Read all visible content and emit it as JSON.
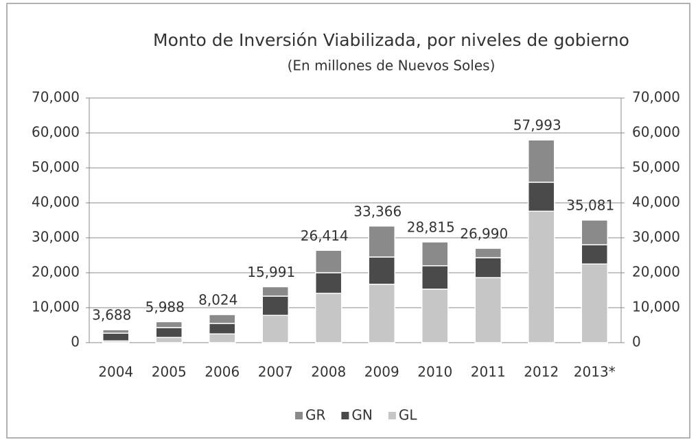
{
  "chart_data": {
    "type": "stacked_bar",
    "title": "Monto de Inversión Viabilizada, por niveles de gobierno",
    "subtitle": "(En millones de Nuevos Soles)",
    "categories": [
      "2004",
      "2005",
      "2006",
      "2007",
      "2008",
      "2009",
      "2010",
      "2011",
      "2012",
      "2013*"
    ],
    "series": [
      {
        "name": "GR",
        "color": "#8a8a8a",
        "values": [
          988,
          1688,
          2524,
          2691,
          6414,
          8866,
          6815,
          2690,
          12093,
          7081
        ]
      },
      {
        "name": "GN",
        "color": "#4a4a4a",
        "values": [
          2200,
          2800,
          3000,
          5500,
          5900,
          7800,
          6700,
          5700,
          8300,
          5500
        ]
      },
      {
        "name": "GL",
        "color": "#c6c6c6",
        "values": [
          500,
          1500,
          2500,
          7800,
          14100,
          16700,
          15300,
          18600,
          37600,
          22500
        ]
      }
    ],
    "totals": [
      3688,
      5988,
      8024,
      15991,
      26414,
      33366,
      28815,
      26990,
      57993,
      35081
    ],
    "total_labels": [
      "3,688",
      "5,988",
      "8,024",
      "15,991",
      "26,414",
      "33,366",
      "28,815",
      "26,990",
      "57,993",
      "35,081"
    ],
    "ylim": [
      0,
      70000
    ],
    "yticks": [
      0,
      {
        "value": 10000,
        "label": "10,000"
      },
      {
        "value": 20000,
        "label": "20,000"
      },
      {
        "value": 30000,
        "label": "30,000"
      },
      {
        "value": 40000,
        "label": "40,000"
      },
      {
        "value": 50000,
        "label": "50,000"
      },
      {
        "value": 60000,
        "label": "60,000"
      },
      {
        "value": 70000,
        "label": "70,000"
      }
    ],
    "y2lim": [
      0,
      70000
    ],
    "y2ticks": [
      0,
      {
        "value": 10000,
        "label": "10,000"
      },
      {
        "value": 20000,
        "label": "20,000"
      },
      {
        "value": 30000,
        "label": "30,000"
      },
      {
        "value": 40000,
        "label": "40,000"
      },
      {
        "value": 50000,
        "label": "50,000"
      },
      {
        "value": 60000,
        "label": "60,000"
      },
      {
        "value": 70000,
        "label": "70,000"
      }
    ],
    "grid": true,
    "legend": "bottom"
  }
}
